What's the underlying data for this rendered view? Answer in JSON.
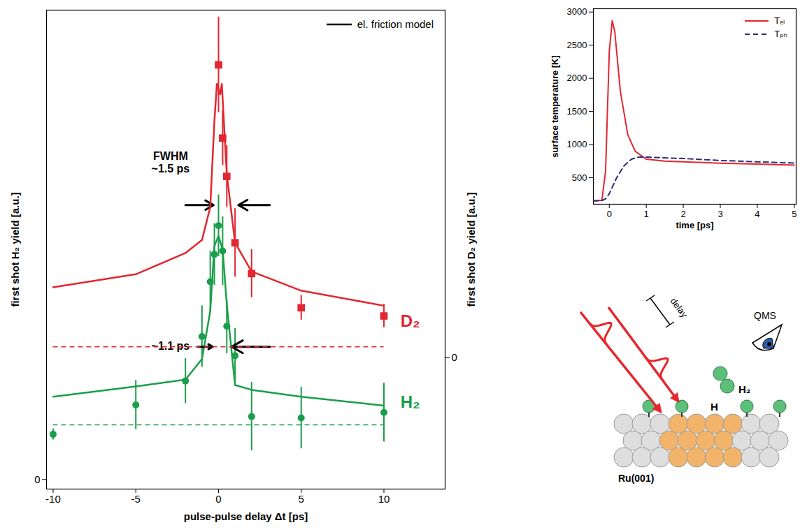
{
  "chart_data": [
    {
      "type": "scatter",
      "xlabel": "pulse-pulse delay Δt [ps]",
      "ylabel": "first shot H₂ yield [a.u.]",
      "y2label": "first shot D₂ yield [a.u.]",
      "xlim": [
        -10.4,
        13.7
      ],
      "xticks": [
        -10,
        -5,
        0,
        5,
        10
      ],
      "ylim": [
        -0.14,
        6.86
      ],
      "yticks": [
        0
      ],
      "y2lim": [
        -1.92,
        5.08
      ],
      "y2ticks": [
        0
      ],
      "legend": "top-right",
      "series": [
        {
          "name": "el. friction model",
          "type": "line",
          "axis": "y",
          "color": "#1a9e4a",
          "line_style": "solid",
          "x": [
            -10,
            -5,
            -2,
            -1,
            -0.5,
            -0.25,
            0,
            0.25,
            0.5,
            1,
            2,
            5,
            10
          ],
          "values": [
            1.21,
            1.36,
            1.46,
            1.76,
            2.46,
            3.41,
            3.56,
            3.36,
            2.56,
            1.38,
            1.31,
            1.21,
            1.08
          ]
        },
        {
          "name": "H₂",
          "type": "scatter",
          "axis": "y",
          "color": "#1a9e4a",
          "marker": "circle",
          "x": [
            -10,
            -5,
            -2,
            -1,
            -0.5,
            -0.25,
            0,
            0.25,
            0.5,
            1,
            2,
            5,
            10
          ],
          "values": [
            0.66,
            1.09,
            1.44,
            2.09,
            2.89,
            3.29,
            3.71,
            3.34,
            2.24,
            1.81,
            0.92,
            0.9,
            0.98
          ],
          "errors": [
            0.08,
            0.36,
            0.33,
            0.45,
            0.45,
            0.45,
            0.45,
            0.5,
            0.4,
            0.4,
            0.5,
            0.45,
            0.43
          ],
          "label_position": {
            "x": 11,
            "y": 1.13
          }
        },
        {
          "name": "el. friction model",
          "type": "line",
          "axis": "y2",
          "color": "#e3262f",
          "line_style": "solid",
          "x": [
            -10,
            -5,
            -2,
            -1,
            -0.5,
            -0.25,
            -0.1,
            0.1,
            0.2,
            0.5,
            1,
            2,
            5,
            10
          ],
          "values": [
            1.03,
            1.22,
            1.53,
            1.72,
            2.2,
            3.45,
            4.0,
            3.85,
            4.0,
            2.68,
            1.68,
            1.26,
            0.98,
            0.76
          ]
        },
        {
          "name": "D₂",
          "type": "scatter",
          "axis": "y2",
          "color": "#e3262f",
          "marker": "square",
          "x": [
            0,
            0.25,
            0.5,
            1,
            2,
            5,
            10
          ],
          "values": [
            4.28,
            3.21,
            2.65,
            1.68,
            1.23,
            0.73,
            0.61
          ],
          "errors": [
            0.7,
            0.4,
            0.45,
            0.5,
            0.35,
            0.18,
            0.17
          ],
          "label_position": {
            "x": 11,
            "y": 0.53
          }
        }
      ],
      "reference_lines": [
        {
          "axis": "y",
          "value": 0.8,
          "x": [
            -10,
            10
          ],
          "color": "#1a9e4a",
          "line_style": "dashed"
        },
        {
          "axis": "y2",
          "value": 0.16,
          "x": [
            -10,
            10
          ],
          "color": "#e3262f",
          "line_style": "dashed"
        }
      ],
      "annotations": [
        {
          "text": "FWHM\n~1.5 ps",
          "x": -2.9,
          "y": 4.64
        },
        {
          "text": "~1.1 ps",
          "x": -2.9,
          "y": 1.96
        }
      ],
      "arrows": [
        {
          "x1": -2.0,
          "x2": -0.3,
          "y": 4.01
        },
        {
          "x1": 3.1,
          "x2": 1.2,
          "y": 4.01
        },
        {
          "x1": -1.25,
          "x2": -0.35,
          "y": 1.94
        },
        {
          "x1": 3.1,
          "x2": 0.8,
          "y": 1.94
        }
      ]
    },
    {
      "type": "line",
      "xlabel": "time [ps]",
      "ylabel": "surface temperature [K]",
      "xlim": [
        -0.43,
        5.05
      ],
      "xticks": [
        0,
        1,
        2,
        3,
        4,
        5
      ],
      "ylim": [
        100,
        3050
      ],
      "yticks": [
        500,
        1000,
        1500,
        2000,
        2500,
        3000
      ],
      "legend": "top-right",
      "series": [
        {
          "name": "Tₑₗ",
          "color": "#e3262f",
          "line_style": "solid",
          "x": [
            -0.43,
            -0.2,
            -0.1,
            0,
            0.08,
            0.15,
            0.3,
            0.5,
            0.7,
            1,
            1.5,
            2,
            3,
            4,
            5
          ],
          "values": [
            150,
            160,
            600,
            2400,
            2870,
            2700,
            1800,
            1150,
            900,
            780,
            750,
            740,
            720,
            705,
            690
          ]
        },
        {
          "name": "Tₚₕ",
          "color": "#2b2b7a",
          "line_style": "dashed",
          "x": [
            -0.43,
            -0.2,
            -0.1,
            0,
            0.2,
            0.4,
            0.6,
            0.8,
            1,
            2,
            3,
            4,
            5
          ],
          "values": [
            150,
            155,
            180,
            260,
            500,
            680,
            780,
            810,
            810,
            790,
            760,
            740,
            720
          ]
        }
      ]
    }
  ],
  "diagram": {
    "delay": "delay",
    "detector": "QMS",
    "molecule": "H₂",
    "atom": "H",
    "surface": "Ru(001)"
  }
}
